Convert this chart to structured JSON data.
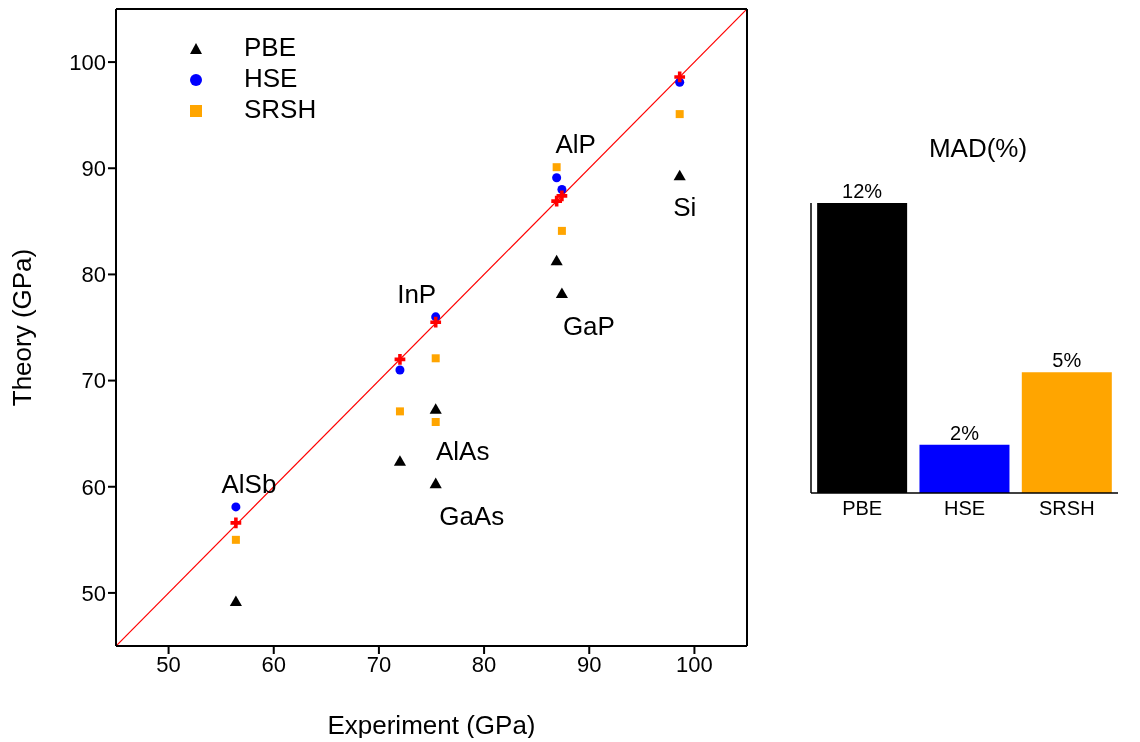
{
  "chart_data": [
    {
      "type": "scatter",
      "xlabel": "Experiment (GPa)",
      "ylabel": "Theory (GPa)",
      "xlim": [
        45,
        105
      ],
      "ylim": [
        45,
        105
      ],
      "xticks": [
        50,
        60,
        70,
        80,
        90,
        100
      ],
      "yticks": [
        50,
        60,
        70,
        80,
        90,
        100
      ],
      "legend": "top left",
      "series": [
        {
          "name": "PBE",
          "type": "scatter",
          "marker": "triangle",
          "color": "#000000",
          "x": [
            56.4,
            72,
            75.4,
            75.4,
            86.9,
            87.4,
            98.6
          ],
          "values": [
            49.1,
            62.3,
            67.2,
            60.2,
            81.2,
            78.1,
            89.2
          ]
        },
        {
          "name": "HSE",
          "type": "scatter",
          "marker": "circle",
          "color": "#0000ff",
          "x": [
            56.4,
            72,
            75.4,
            86.9,
            87.4,
            98.6
          ],
          "values": [
            58.1,
            71.0,
            76.0,
            89.1,
            88.0,
            98.1
          ]
        },
        {
          "name": "SRSH",
          "type": "scatter",
          "marker": "square",
          "color": "#ffa500",
          "x": [
            56.4,
            72,
            75.4,
            75.4,
            86.9,
            87.4,
            98.6
          ],
          "values": [
            55.0,
            67.1,
            72.1,
            66.1,
            90.1,
            84.1,
            95.1
          ]
        },
        {
          "type": "line",
          "marker": "none",
          "color": "#ff0000",
          "x": [
            45,
            105
          ],
          "values": [
            45,
            105
          ]
        },
        {
          "type": "scatter",
          "marker": "cross",
          "color": "#ff0000",
          "x": [
            56.4,
            72,
            75.4,
            86.9,
            87.4,
            98.6
          ],
          "values": [
            56.6,
            72,
            75.5,
            86.9,
            87.4,
            98.6
          ]
        }
      ],
      "annotations": [
        {
          "text": "AlSb",
          "x": 56.4,
          "y": 58.1
        },
        {
          "text": "InP",
          "x": 75.4,
          "y": 76.0
        },
        {
          "text": "AlP",
          "x": 86.9,
          "y": 90.1
        },
        {
          "text": "Si",
          "x": 98.6,
          "y": 89.2
        },
        {
          "text": "GaP",
          "x": 87.4,
          "y": 78.1
        },
        {
          "text": "AlAs",
          "x": 75.4,
          "y": 67.2
        },
        {
          "text": "GaAs",
          "x": 75.4,
          "y": 60.2
        }
      ]
    },
    {
      "type": "bar",
      "title": "MAD(%)",
      "categories": [
        "PBE",
        "HSE",
        "SRSH"
      ],
      "values": [
        12,
        2,
        5
      ],
      "colors": [
        "#000000",
        "#0000ff",
        "#ffa500"
      ],
      "value_labels": [
        "12%",
        "2%",
        "5%"
      ]
    }
  ]
}
